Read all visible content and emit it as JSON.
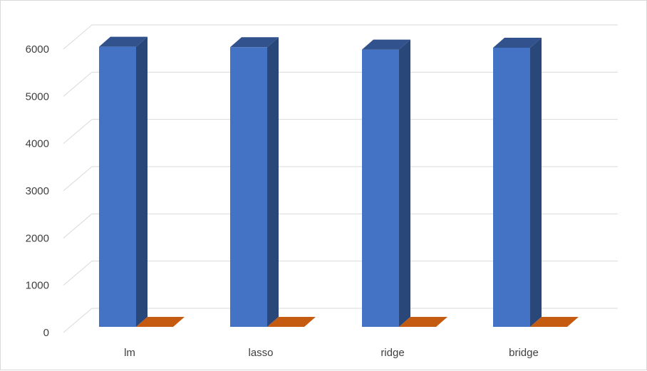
{
  "chart_data": {
    "type": "bar",
    "style": "3d-clustered-column",
    "categories": [
      "lm",
      "lasso",
      "ridge",
      "bridge"
    ],
    "series": [
      {
        "color": "#4472C4",
        "values": [
          5930,
          5920,
          5870,
          5910
        ]
      },
      {
        "color": "#C55A11",
        "values": [
          0,
          0,
          0,
          0
        ]
      }
    ],
    "yticks": [
      "0",
      "1000",
      "2000",
      "3000",
      "4000",
      "5000",
      "6000"
    ],
    "ylim": [
      0,
      6000
    ],
    "grid": true,
    "legend": "none"
  }
}
